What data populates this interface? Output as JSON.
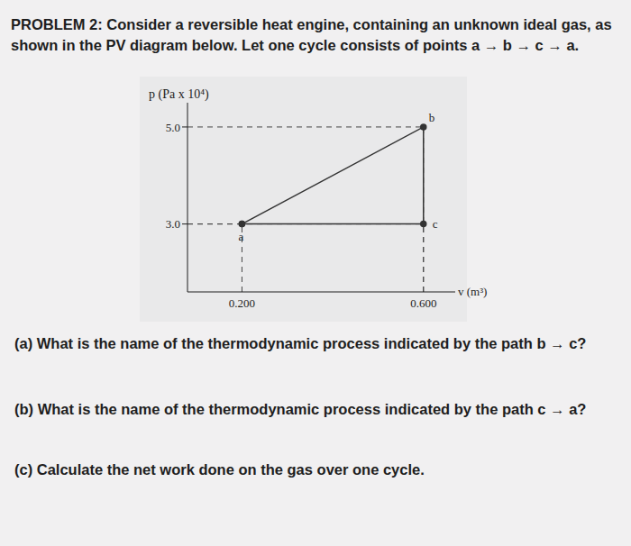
{
  "heading": "PROBLEM 2:",
  "intro": [
    "Consider a reversible heat engine, containing an unknown ideal gas, as",
    "shown in the PV diagram below. Let one cycle consists of points a → b → c → a."
  ],
  "chart_data": {
    "type": "line",
    "x_label": "v (m³)",
    "y_label": "p (Pa x 10⁴)",
    "x": [
      0.2,
      0.6,
      0.6
    ],
    "values": [
      3.0,
      5.0,
      3.0
    ],
    "point_labels": [
      "a",
      "b",
      "c"
    ],
    "color": "#333333",
    "marker": "circle",
    "line_style": "solid",
    "xlim": [
      0.08,
      0.67
    ],
    "ylim": [
      1.6,
      5.5
    ],
    "xticks": [
      {
        "value": 0.2,
        "label": "0.200"
      },
      {
        "value": 0.6,
        "label": "0.600"
      }
    ],
    "yticks": [
      {
        "value": 3.0,
        "label": "3.0"
      },
      {
        "value": 5.0,
        "label": "5.0"
      }
    ],
    "grid": false
  },
  "questions": [
    "(a) What is the name of the thermodynamic process indicated by the path b → c?",
    "(b) What is the name of the thermodynamic process indicated by the path c → a?",
    "(c) Calculate the net work done on the gas over one cycle."
  ]
}
